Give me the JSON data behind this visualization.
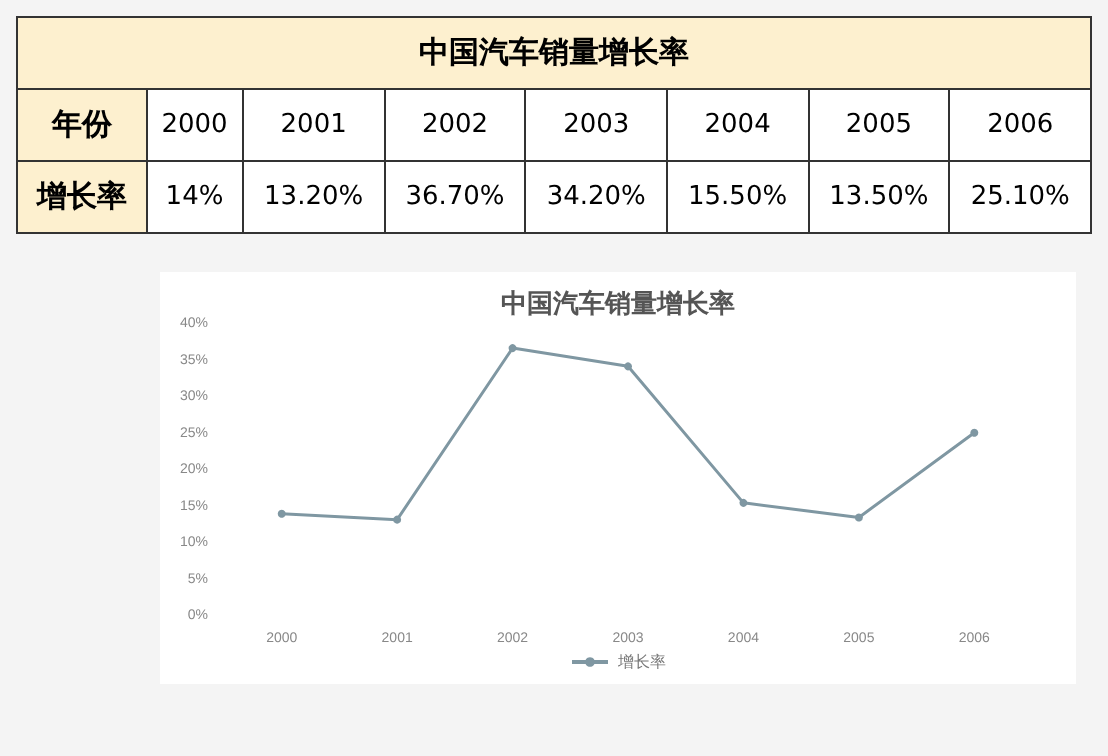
{
  "chart_data": {
    "type": "line",
    "title": "中国汽车销量增长率",
    "annotations": [
      "年份",
      "14%",
      "13.20%",
      "36.70%",
      "34.20%",
      "15.50%",
      "13.50%",
      "25.10%"
    ],
    "categories": [
      "2000",
      "2001",
      "2002",
      "2003",
      "2004",
      "2005",
      "2006"
    ],
    "series": [
      {
        "name": "增长率",
        "color": "#7f97a2",
        "values": [
          14,
          13.2,
          36.7,
          34.2,
          15.5,
          13.5,
          25.1
        ]
      }
    ],
    "ylim": [
      0,
      40
    ],
    "yticks": [
      {
        "value": 0,
        "label": "0%"
      },
      {
        "value": 5,
        "label": "5%"
      },
      {
        "value": 10,
        "label": "10%"
      },
      {
        "value": 15,
        "label": "15%"
      },
      {
        "value": 20,
        "label": "20%"
      },
      {
        "value": 25,
        "label": "25%"
      },
      {
        "value": 30,
        "label": "30%"
      },
      {
        "value": 35,
        "label": "35%"
      },
      {
        "value": 40,
        "label": "40%"
      }
    ],
    "grid": false,
    "legend": "bottom",
    "marker": "circle",
    "line_style": "solid"
  }
}
